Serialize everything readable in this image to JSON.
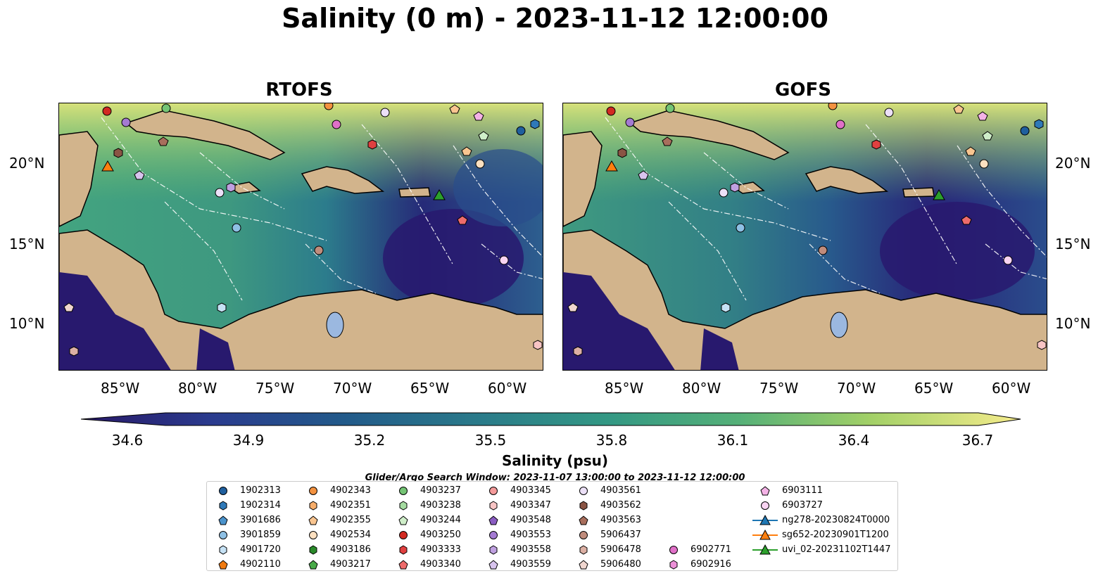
{
  "figure": {
    "title": "Salinity (0 m) - 2023-11-12 12:00:00",
    "panels": [
      {
        "title": "RTOFS"
      },
      {
        "title": "GOFS"
      }
    ],
    "lon_ticks": [
      "85°W",
      "80°W",
      "75°W",
      "70°W",
      "65°W",
      "60°W"
    ],
    "lat_ticks": [
      "20°N",
      "15°N",
      "10°N"
    ],
    "colorbar_label": "Salinity (psu)",
    "colorbar_ticks": [
      "34.6",
      "34.9",
      "35.2",
      "35.5",
      "35.8",
      "36.1",
      "36.4",
      "36.7"
    ],
    "legend_title": "Glider/Argo Search Window: 2023-11-07 13:00:00 to 2023-11-12 12:00:00",
    "colors": {
      "land": "#d2b48c",
      "ocean_low": "#2a186c",
      "ocean_mid": "#2d8f8a",
      "ocean_high": "#f5ee8f",
      "boundary": "#ffffff",
      "river": "#a5b9d6"
    }
  },
  "chart_data": {
    "type": "heatmap",
    "variable": "Salinity",
    "units": "psu",
    "depth": "0 m",
    "datetime": "2023-11-12 12:00:00",
    "colorbar_range": [
      34.6,
      36.7
    ],
    "colorbar_extend": "both",
    "lon_range": [
      -89,
      -58
    ],
    "lat_range": [
      7,
      24
    ],
    "panels": [
      "RTOFS",
      "GOFS"
    ],
    "legend": [
      {
        "label": "1902313",
        "marker": "circle",
        "color": "#1f5f9e"
      },
      {
        "label": "1902314",
        "marker": "hexagon",
        "color": "#2f79b8"
      },
      {
        "label": "3901686",
        "marker": "pentagon",
        "color": "#4a93cc"
      },
      {
        "label": "3901859",
        "marker": "circle",
        "color": "#8ec0e4"
      },
      {
        "label": "4901720",
        "marker": "hexagon",
        "color": "#c6e2f5"
      },
      {
        "label": "4902110",
        "marker": "pentagon",
        "color": "#f07a10"
      },
      {
        "label": "4902343",
        "marker": "circle",
        "color": "#f39240"
      },
      {
        "label": "4902351",
        "marker": "hexagon",
        "color": "#f7ad6a"
      },
      {
        "label": "4902355",
        "marker": "pentagon",
        "color": "#f9c590"
      },
      {
        "label": "4902534",
        "marker": "circle",
        "color": "#fde0c0"
      },
      {
        "label": "4903186",
        "marker": "hexagon",
        "color": "#2a8a2a"
      },
      {
        "label": "4903217",
        "marker": "pentagon",
        "color": "#48aa48"
      },
      {
        "label": "4903237",
        "marker": "circle",
        "color": "#74c474"
      },
      {
        "label": "4903238",
        "marker": "hexagon",
        "color": "#a4dba0"
      },
      {
        "label": "4903244",
        "marker": "pentagon",
        "color": "#cfeec9"
      },
      {
        "label": "4903250",
        "marker": "circle",
        "color": "#d22a22"
      },
      {
        "label": "4903333",
        "marker": "hexagon",
        "color": "#e04040"
      },
      {
        "label": "4903340",
        "marker": "pentagon",
        "color": "#ee6b6b"
      },
      {
        "label": "4903345",
        "marker": "circle",
        "color": "#f49a9a"
      },
      {
        "label": "4903347",
        "marker": "hexagon",
        "color": "#f8c4c4"
      },
      {
        "label": "4903548",
        "marker": "pentagon",
        "color": "#8a5cc2"
      },
      {
        "label": "4903553",
        "marker": "circle",
        "color": "#a47ad2"
      },
      {
        "label": "4903558",
        "marker": "hexagon",
        "color": "#bfa0e0"
      },
      {
        "label": "4903559",
        "marker": "pentagon",
        "color": "#d8c4ee"
      },
      {
        "label": "4903561",
        "marker": "circle",
        "color": "#ece0f7"
      },
      {
        "label": "4903562",
        "marker": "hexagon",
        "color": "#8a5444"
      },
      {
        "label": "4903563",
        "marker": "pentagon",
        "color": "#a86e5c"
      },
      {
        "label": "5906437",
        "marker": "circle",
        "color": "#c08c7c"
      },
      {
        "label": "5906478",
        "marker": "hexagon",
        "color": "#dcb0a4"
      },
      {
        "label": "5906480",
        "marker": "pentagon",
        "color": "#f0d6cf"
      },
      {
        "label": "6902771",
        "marker": "circle",
        "color": "#e070c8"
      },
      {
        "label": "6902916",
        "marker": "hexagon",
        "color": "#ec90d8"
      },
      {
        "label": "6903111",
        "marker": "pentagon",
        "color": "#f4b2e6"
      },
      {
        "label": "6903727",
        "marker": "circle",
        "color": "#f9d4f2"
      },
      {
        "label": "ng278-20230824T0000",
        "marker": "triangle-line",
        "color": "#1f77b4"
      },
      {
        "label": "sg652-20230901T1200",
        "marker": "triangle-line",
        "color": "#ff7f0e"
      },
      {
        "label": "uvi_02-20231102T1447",
        "marker": "triangle-line",
        "color": "#2ca02c"
      }
    ],
    "floats": [
      {
        "id": "4903250",
        "lon": -86.0,
        "lat": 23.3
      },
      {
        "id": "4903553",
        "lon": -85.2,
        "lat": 22.6
      },
      {
        "id": "4903237",
        "lon": -82.0,
        "lat": 23.5
      },
      {
        "id": "4902343",
        "lon": -71.5,
        "lat": 23.7
      },
      {
        "id": "4903561",
        "lon": -68.1,
        "lat": 23.2
      },
      {
        "id": "6902771",
        "lon": -71.4,
        "lat": 22.5
      },
      {
        "id": "4903333",
        "lon": -68.8,
        "lat": 21.2
      },
      {
        "id": "4902355",
        "lon": -63.5,
        "lat": 23.5
      },
      {
        "id": "6903111",
        "lon": -62.0,
        "lat": 23.0
      },
      {
        "id": "4903244",
        "lon": -61.8,
        "lat": 21.8
      },
      {
        "id": "4902351",
        "lon": -62.8,
        "lat": 20.8
      },
      {
        "id": "1902313",
        "lon": -59.5,
        "lat": 22.1
      },
      {
        "id": "1902314",
        "lon": -58.6,
        "lat": 22.5
      },
      {
        "id": "4903562",
        "lon": -85.2,
        "lat": 20.7
      },
      {
        "id": "4903563",
        "lon": -82.2,
        "lat": 21.6
      },
      {
        "id": "4902110",
        "lon": -86.0,
        "lat": 19.9
      },
      {
        "id": "4903559",
        "lon": -83.8,
        "lat": 19.3
      },
      {
        "id": "4903561",
        "lon": -78.8,
        "lat": 18.3
      },
      {
        "id": "4903558",
        "lon": -78.0,
        "lat": 18.6
      },
      {
        "id": "3901859",
        "lon": -77.3,
        "lat": 16.1
      },
      {
        "id": "4902534",
        "lon": -61.9,
        "lat": 20.0
      },
      {
        "id": "4903340",
        "lon": -62.9,
        "lat": 16.5
      },
      {
        "id": "5906437",
        "lon": -72.3,
        "lat": 14.6
      },
      {
        "id": "6903727",
        "lon": -60.4,
        "lat": 14.0
      },
      {
        "id": "5906480",
        "lon": -88.5,
        "lat": 11.3
      },
      {
        "id": "4901720",
        "lon": -78.5,
        "lat": 11.1
      },
      {
        "id": "5906478",
        "lon": -88.0,
        "lat": 8.5
      },
      {
        "id": "4903347",
        "lon": -58.3,
        "lat": 8.7
      }
    ],
    "gliders": [
      {
        "id": "sg652-20230901T1200",
        "lon": -86.0,
        "lat": 19.9
      },
      {
        "id": "uvi_02-20231102T1447",
        "lon": -64.8,
        "lat": 18.1
      }
    ]
  }
}
